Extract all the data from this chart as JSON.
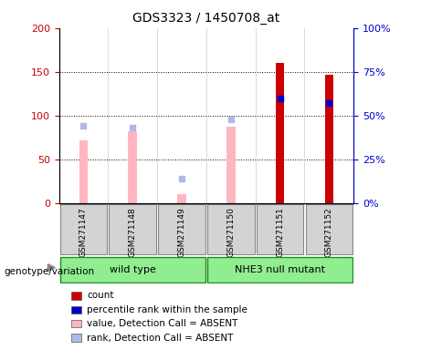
{
  "title": "GDS3323 / 1450708_at",
  "samples": [
    "GSM271147",
    "GSM271148",
    "GSM271149",
    "GSM271150",
    "GSM271151",
    "GSM271152"
  ],
  "left_yaxis": {
    "min": 0,
    "max": 200,
    "ticks": [
      0,
      50,
      100,
      150,
      200
    ],
    "color": "#cc0000"
  },
  "right_yaxis": {
    "min": 0,
    "max": 100,
    "ticks": [
      0,
      25,
      50,
      75,
      100
    ],
    "color": "#0000cc"
  },
  "count_values": [
    null,
    null,
    null,
    null,
    160,
    147
  ],
  "count_color": "#cc0000",
  "percentile_rank_values": [
    null,
    null,
    null,
    null,
    60,
    57
  ],
  "percentile_rank_color": "#0000cc",
  "value_absent_values": [
    72,
    82,
    10,
    87,
    null,
    null
  ],
  "value_absent_color": "#ffb6c1",
  "rank_absent_values": [
    44,
    43,
    14,
    48,
    null,
    null
  ],
  "rank_absent_color": "#b0b8e8",
  "legend_items": [
    {
      "label": "count",
      "color": "#cc0000"
    },
    {
      "label": "percentile rank within the sample",
      "color": "#0000cc"
    },
    {
      "label": "value, Detection Call = ABSENT",
      "color": "#ffb6c1"
    },
    {
      "label": "rank, Detection Call = ABSENT",
      "color": "#b0b8e8"
    }
  ],
  "genotype_label": "genotype/variation",
  "group_label_1": "wild type",
  "group_label_2": "NHE3 null mutant",
  "group1_color": "#90EE90",
  "group2_color": "#90EE90",
  "bar_width": 0.18
}
